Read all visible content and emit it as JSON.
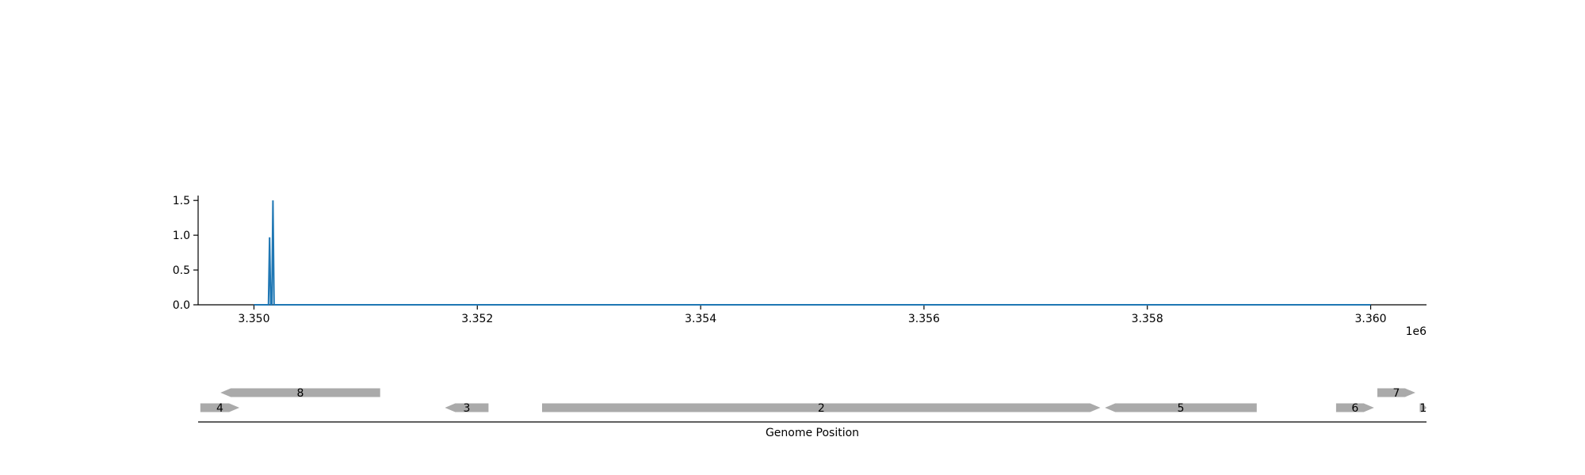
{
  "chart_data": [
    {
      "type": "line",
      "title": "",
      "xlabel": "",
      "ylabel": "",
      "x_offset_label": "1e6",
      "xlim": [
        3349500,
        3360500
      ],
      "ylim": [
        0,
        1.65
      ],
      "x_ticks": [
        3350000,
        3352000,
        3354000,
        3356000,
        3358000,
        3360000
      ],
      "x_tick_labels": [
        "3.350",
        "3.352",
        "3.354",
        "3.356",
        "3.358",
        "3.360"
      ],
      "y_ticks": [
        0.0,
        0.5,
        1.0,
        1.5
      ],
      "y_tick_labels": [
        "0.0",
        "0.5",
        "1.0",
        "1.5"
      ],
      "color": "#1f77b4",
      "grid": false,
      "series": [
        {
          "x": [
            3350000,
            3350130,
            3350140,
            3350150,
            3350160,
            3350170,
            3350180,
            3350190,
            3360000
          ],
          "y": [
            0,
            0,
            0.97,
            0,
            0,
            1.5,
            0,
            0,
            0
          ]
        }
      ]
    },
    {
      "type": "gene-track",
      "xlabel": "Genome Position",
      "xlim": [
        3349500,
        3360500
      ],
      "color": "#aaaaaa",
      "genes": [
        {
          "label": "4",
          "start": 3349520,
          "end": 3349870,
          "strand": "+",
          "row": 0
        },
        {
          "label": "8",
          "start": 3349700,
          "end": 3351130,
          "strand": "-",
          "row": 1
        },
        {
          "label": "3",
          "start": 3351710,
          "end": 3352100,
          "strand": "-",
          "row": 0
        },
        {
          "label": "2",
          "start": 3352580,
          "end": 3357580,
          "strand": "+",
          "row": 0
        },
        {
          "label": "5",
          "start": 3357620,
          "end": 3358980,
          "strand": "-",
          "row": 0
        },
        {
          "label": "6",
          "start": 3359690,
          "end": 3360030,
          "strand": "+",
          "row": 0
        },
        {
          "label": "7",
          "start": 3360060,
          "end": 3360400,
          "strand": "+",
          "row": 1
        },
        {
          "label": "1",
          "start": 3360440,
          "end": 3360500,
          "strand": "+",
          "row": 0
        }
      ]
    }
  ]
}
